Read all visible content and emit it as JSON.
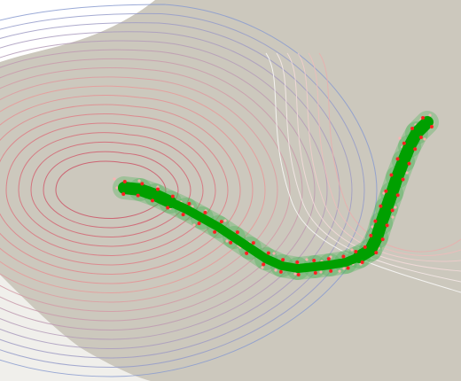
{
  "canvas": {
    "background": "#ccc8bd",
    "outer_fill": "#ffffff"
  },
  "contours": {
    "blue_color": "#8a9bd0",
    "pink_color": "#e89a9a",
    "inner_color": "#c94a60",
    "count_outer": 9,
    "count_inner": 9
  },
  "path": {
    "segment_fill": "#00a000",
    "segment_ghost": "#4fb55a",
    "node_color": "#ff2020",
    "particle_color": "#ffb0b0"
  }
}
